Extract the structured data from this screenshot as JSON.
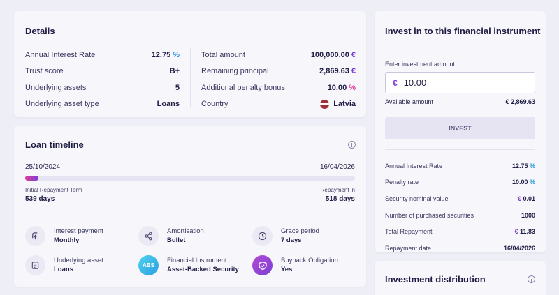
{
  "details": {
    "title": "Details",
    "left_rows": [
      {
        "label": "Annual Interest Rate",
        "value": "12.75",
        "unit": "%"
      },
      {
        "label": "Trust score",
        "value": "B+"
      },
      {
        "label": "Underlying assets",
        "value": "5"
      },
      {
        "label": "Underlying asset type",
        "value": "Loans"
      }
    ],
    "right_rows": [
      {
        "label": "Total amount",
        "value": "100,000.00",
        "unit": "€"
      },
      {
        "label": "Remaining principal",
        "value": "2,869.63",
        "unit": "€"
      },
      {
        "label": "Additional penalty bonus",
        "value": "10.00",
        "unit": "%"
      },
      {
        "label": "Country",
        "value": "Latvia"
      }
    ]
  },
  "timeline": {
    "title": "Loan timeline",
    "start_date": "25/10/2024",
    "end_date": "16/04/2026",
    "progress_percent": 4,
    "initial_term_label": "Initial Repayment Term",
    "initial_term_value": "539 days",
    "repayment_in_label": "Repayment in",
    "repayment_in_value": "518 days",
    "features": [
      {
        "label": "Interest payment",
        "value": "Monthly"
      },
      {
        "label": "Amortisation",
        "value": "Bullet"
      },
      {
        "label": "Grace period",
        "value": "7 days"
      },
      {
        "label": "Underlying asset",
        "value": "Loans"
      },
      {
        "label": "Financial Instrument",
        "value": "Asset-Backed Security",
        "icon_text": "ABS"
      },
      {
        "label": "Buyback Obligation",
        "value": "Yes"
      }
    ]
  },
  "invest": {
    "title": "Invest in to this financial instrument",
    "input_label": "Enter investment amount",
    "currency": "€",
    "amount": "10.00",
    "available_label": "Available amount",
    "available_value": "€ 2,869.63",
    "button_label": "INVEST",
    "rows": [
      {
        "label": "Annual Interest Rate",
        "value": "12.75",
        "unit": "%"
      },
      {
        "label": "Penalty rate",
        "value": "10.00",
        "unit": "%"
      },
      {
        "label": "Security nominal value",
        "value": "0.01",
        "prefix": "€"
      },
      {
        "label": "Number of purchased securities",
        "value": "1000"
      },
      {
        "label": "Total Repayment",
        "value": "11.83",
        "prefix": "€"
      },
      {
        "label": "Repayment date",
        "value": "16/04/2026"
      }
    ]
  },
  "distribution": {
    "title": "Investment distribution"
  },
  "colors": {
    "background": "#eeeef6",
    "card": "#f7f7fb",
    "accent_purple": "#7a3fd6",
    "accent_blue": "#1f95d6",
    "accent_pink": "#de3d9a",
    "accent_teal": "#1fb8ad"
  }
}
